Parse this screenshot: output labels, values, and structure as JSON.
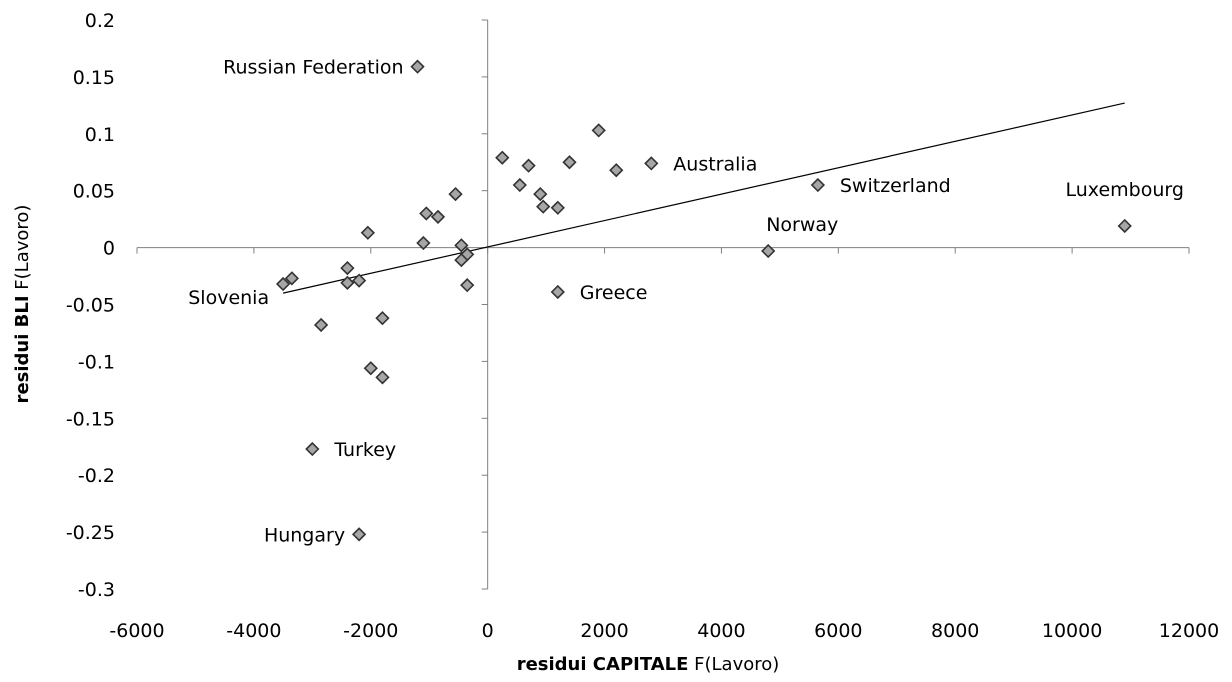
{
  "chart_data": {
    "type": "scatter",
    "title": "",
    "xlabel_bold": "residui CAPITALE",
    "xlabel_rest": " F(Lavoro)",
    "ylabel_bold": "residui BLI",
    "ylabel_rest": " F(Lavoro)",
    "xlim": [
      -6000,
      12000
    ],
    "ylim": [
      -0.3,
      0.2
    ],
    "xticks": [
      -6000,
      -4000,
      -2000,
      0,
      2000,
      4000,
      6000,
      8000,
      10000,
      12000
    ],
    "yticks": [
      0.2,
      0.15,
      0.1,
      0.05,
      0,
      -0.05,
      -0.1,
      -0.15,
      -0.2,
      -0.25,
      -0.3
    ],
    "xtick_labels": [
      "-6000",
      "-4000",
      "-2000",
      "0",
      "2000",
      "4000",
      "6000",
      "8000",
      "10000",
      "12000"
    ],
    "ytick_labels": [
      "0.2",
      "0.15",
      "0.1",
      "0.05",
      "0",
      "-0.05",
      "-0.1",
      "-0.15",
      "-0.2",
      "-0.25",
      "-0.3"
    ],
    "grid": false,
    "legend": "none",
    "colors": {
      "marker_fill": "#a6a6a6",
      "marker_stroke": "#333333",
      "line": "#000000",
      "axis": "#808080"
    },
    "trendline": {
      "x": [
        -3500,
        10900
      ],
      "y": [
        -0.04,
        0.127
      ]
    },
    "points": [
      {
        "x": -1200,
        "y": 0.159,
        "label": "Russian Federation",
        "anchor": "end"
      },
      {
        "x": 1900,
        "y": 0.103
      },
      {
        "x": 2800,
        "y": 0.074,
        "label": "Australia",
        "anchor": "start"
      },
      {
        "x": 250,
        "y": 0.079
      },
      {
        "x": 700,
        "y": 0.072
      },
      {
        "x": 1400,
        "y": 0.075
      },
      {
        "x": 2200,
        "y": 0.068
      },
      {
        "x": 550,
        "y": 0.055
      },
      {
        "x": 900,
        "y": 0.047
      },
      {
        "x": 950,
        "y": 0.036
      },
      {
        "x": 1200,
        "y": 0.035
      },
      {
        "x": -550,
        "y": 0.047
      },
      {
        "x": -1050,
        "y": 0.03
      },
      {
        "x": -850,
        "y": 0.027
      },
      {
        "x": -2050,
        "y": 0.013
      },
      {
        "x": -1100,
        "y": 0.004
      },
      {
        "x": -450,
        "y": 0.002
      },
      {
        "x": -350,
        "y": -0.006
      },
      {
        "x": -450,
        "y": -0.011
      },
      {
        "x": -350,
        "y": -0.033
      },
      {
        "x": 5650,
        "y": 0.055,
        "label": "Switzerland",
        "anchor": "start"
      },
      {
        "x": 10900,
        "y": 0.019,
        "label": "Luxembourg",
        "anchor": "middle"
      },
      {
        "x": 4800,
        "y": -0.003,
        "label": "Norway",
        "anchor": "start"
      },
      {
        "x": 1200,
        "y": -0.039,
        "label": "Greece",
        "anchor": "start"
      },
      {
        "x": -3500,
        "y": -0.032,
        "label": "Slovenia",
        "anchor": "end"
      },
      {
        "x": -3350,
        "y": -0.027
      },
      {
        "x": -2400,
        "y": -0.018
      },
      {
        "x": -2400,
        "y": -0.031
      },
      {
        "x": -2200,
        "y": -0.029
      },
      {
        "x": -2850,
        "y": -0.068
      },
      {
        "x": -1800,
        "y": -0.062
      },
      {
        "x": -2000,
        "y": -0.106
      },
      {
        "x": -1800,
        "y": -0.114
      },
      {
        "x": -3000,
        "y": -0.177,
        "label": "Turkey",
        "anchor": "start"
      },
      {
        "x": -2200,
        "y": -0.252,
        "label": "Hungary",
        "anchor": "end"
      }
    ]
  }
}
